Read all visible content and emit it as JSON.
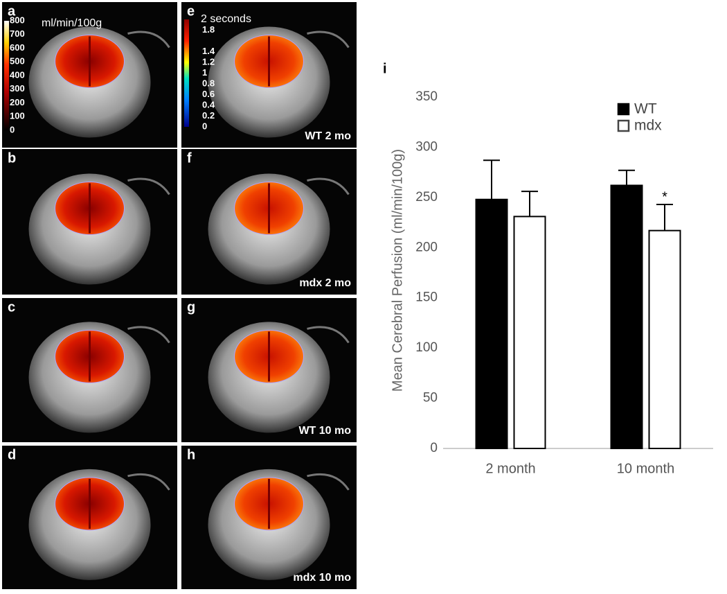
{
  "panels": [
    {
      "letter": "a"
    },
    {
      "letter": "b"
    },
    {
      "letter": "c"
    },
    {
      "letter": "d"
    },
    {
      "letter": "e",
      "caption": "WT 2 mo"
    },
    {
      "letter": "f",
      "caption": "mdx 2 mo"
    },
    {
      "letter": "g",
      "caption": "WT 10 mo"
    },
    {
      "letter": "h",
      "caption": "mdx 10 mo"
    }
  ],
  "colorbars": [
    {
      "title": "ml/min/100g",
      "ticks": [
        800,
        700,
        600,
        500,
        400,
        300,
        200,
        100,
        0
      ]
    },
    {
      "title": "2 seconds",
      "ticks": [
        1.8,
        1.4,
        1.2,
        1,
        0.8,
        0.6,
        0.4,
        0.2,
        0
      ]
    }
  ],
  "chart_data": {
    "type": "bar",
    "panel_label": "i",
    "ylabel": "Mean Cerebral Perfusion (ml/min/100g)",
    "categories": [
      "2 month",
      "10 month"
    ],
    "series": [
      {
        "name": "WT",
        "color": "#000000",
        "values": [
          248,
          262
        ],
        "errors": [
          39,
          15
        ]
      },
      {
        "name": "mdx",
        "color": "#ffffff",
        "values": [
          231,
          217
        ],
        "errors": [
          25,
          26
        ]
      }
    ],
    "annotations": [
      {
        "text": "*",
        "series": 1,
        "category": 1
      }
    ],
    "ylim": [
      0,
      350
    ],
    "yticks": [
      0,
      50,
      100,
      150,
      200,
      250,
      300,
      350
    ],
    "legend": "upper right"
  }
}
